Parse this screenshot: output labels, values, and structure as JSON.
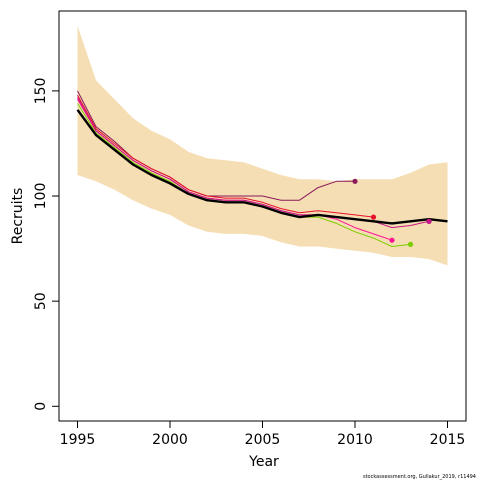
{
  "chart_data": {
    "type": "line",
    "title": "",
    "xlabel": "Year",
    "ylabel": "Recruits",
    "xlim": [
      1994,
      2016
    ],
    "ylim": [
      -7,
      188
    ],
    "x_ticks": [
      1995,
      2000,
      2005,
      2010,
      2015
    ],
    "y_ticks": [
      0,
      50,
      100,
      150
    ],
    "grid": false,
    "legend": "none",
    "band": {
      "color": "#F5DEB3",
      "x": [
        1995,
        1996,
        1997,
        1998,
        1999,
        2000,
        2001,
        2002,
        2003,
        2004,
        2005,
        2006,
        2007,
        2008,
        2009,
        2010,
        2011,
        2012,
        2013,
        2014,
        2015
      ],
      "upper": [
        181,
        155,
        146,
        137,
        131,
        127,
        121,
        118,
        117,
        116,
        113,
        110,
        108,
        108,
        107,
        108,
        108,
        108,
        111,
        115,
        116
      ],
      "lower": [
        110,
        107,
        103,
        98,
        94,
        91,
        86,
        83,
        82,
        82,
        81,
        78,
        76,
        76,
        75,
        74,
        73,
        71,
        71,
        70,
        67
      ]
    },
    "series": [
      {
        "color": "#000000",
        "width": 2.4,
        "x": [
          1995,
          1996,
          1997,
          1998,
          1999,
          2000,
          2001,
          2002,
          2003,
          2004,
          2005,
          2006,
          2007,
          2008,
          2009,
          2010,
          2011,
          2012,
          2013,
          2014,
          2015
        ],
        "values": [
          141,
          129,
          122,
          115,
          110,
          106,
          101,
          98,
          97,
          97,
          95,
          92,
          90,
          91,
          90,
          89,
          88,
          87,
          88,
          89,
          88
        ],
        "end_point": false
      },
      {
        "color": "#8B1A5A",
        "width": 1,
        "x": [
          1995,
          1996,
          1997,
          1998,
          1999,
          2000,
          2001,
          2002,
          2003,
          2004,
          2005,
          2006,
          2007,
          2008,
          2009,
          2010
        ],
        "values": [
          150,
          133,
          126,
          118,
          113,
          109,
          103,
          100,
          100,
          100,
          100,
          98,
          98,
          104,
          107,
          107
        ],
        "end_point": true
      },
      {
        "color": "#E8112D",
        "width": 1,
        "x": [
          1995,
          1996,
          1997,
          1998,
          1999,
          2000,
          2001,
          2002,
          2003,
          2004,
          2005,
          2006,
          2007,
          2008,
          2009,
          2010,
          2011
        ],
        "values": [
          148,
          132,
          125,
          118,
          113,
          109,
          103,
          100,
          99,
          99,
          97,
          94,
          92,
          93,
          92,
          91,
          90
        ],
        "end_point": true
      },
      {
        "color": "#FF1493",
        "width": 1,
        "x": [
          1995,
          1996,
          1997,
          1998,
          1999,
          2000,
          2001,
          2002,
          2003,
          2004,
          2005,
          2006,
          2007,
          2008,
          2009,
          2010,
          2011,
          2012
        ],
        "values": [
          146,
          131,
          124,
          117,
          112,
          108,
          102,
          99,
          98,
          98,
          96,
          93,
          91,
          91,
          89,
          85,
          82,
          79
        ],
        "end_point": true
      },
      {
        "color": "#7CCD00",
        "width": 1,
        "x": [
          1995,
          1996,
          1997,
          1998,
          1999,
          2000,
          2001,
          2002,
          2003,
          2004,
          2005,
          2006,
          2007,
          2008,
          2009,
          2010,
          2011,
          2012,
          2013
        ],
        "values": [
          144,
          130,
          123,
          116,
          111,
          107,
          101,
          98,
          97,
          97,
          95,
          92,
          90,
          90,
          87,
          83,
          80,
          76,
          77
        ],
        "end_point": true
      },
      {
        "color": "#C71585",
        "width": 1,
        "x": [
          1995,
          1996,
          1997,
          1998,
          1999,
          2000,
          2001,
          2002,
          2003,
          2004,
          2005,
          2006,
          2007,
          2008,
          2009,
          2010,
          2011,
          2012,
          2013,
          2014
        ],
        "values": [
          147,
          131,
          124,
          117,
          112,
          108,
          102,
          99,
          98,
          98,
          96,
          93,
          91,
          91,
          90,
          89,
          88,
          85,
          86,
          88
        ],
        "end_point": true
      },
      {
        "color": "#5E2D91",
        "width": 0,
        "x": [
          2014
        ],
        "values": [
          88
        ],
        "end_point": true
      }
    ]
  },
  "credit": "stockassessment.org, Gullakur_2019, r11494"
}
